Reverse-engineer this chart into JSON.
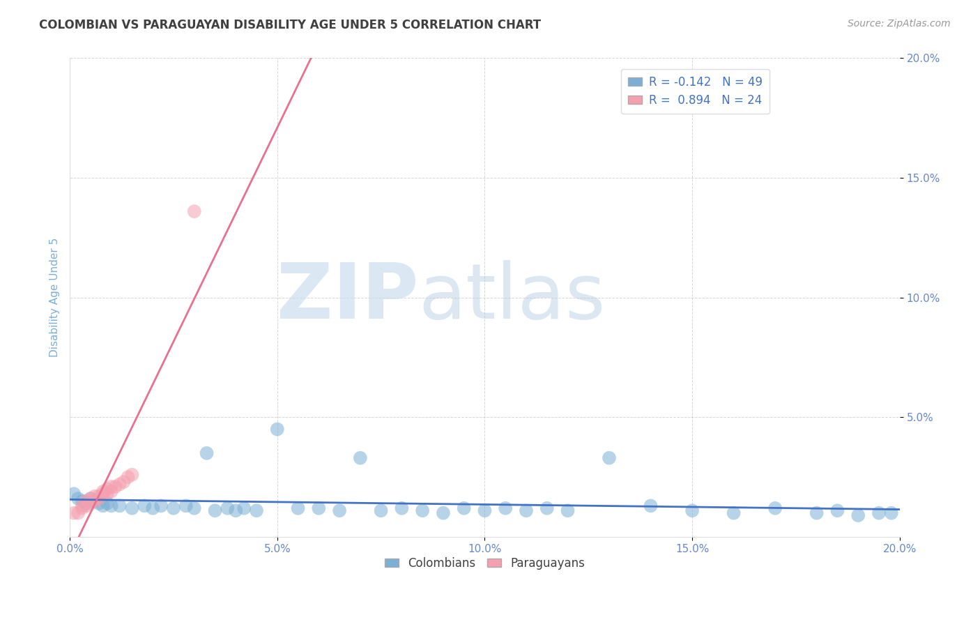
{
  "title": "COLOMBIAN VS PARAGUAYAN DISABILITY AGE UNDER 5 CORRELATION CHART",
  "source_text": "Source: ZipAtlas.com",
  "ylabel": "Disability Age Under 5",
  "xlim": [
    0.0,
    0.2
  ],
  "ylim": [
    0.0,
    0.2
  ],
  "xtick_labels": [
    "0.0%",
    "5.0%",
    "10.0%",
    "15.0%",
    "20.0%"
  ],
  "xtick_vals": [
    0.0,
    0.05,
    0.1,
    0.15,
    0.2
  ],
  "ytick_labels": [
    "20.0%",
    "15.0%",
    "10.0%",
    "5.0%"
  ],
  "ytick_vals": [
    0.2,
    0.15,
    0.1,
    0.05
  ],
  "colombians_x": [
    0.001,
    0.002,
    0.003,
    0.004,
    0.005,
    0.006,
    0.007,
    0.008,
    0.009,
    0.01,
    0.012,
    0.015,
    0.018,
    0.02,
    0.022,
    0.025,
    0.028,
    0.03,
    0.033,
    0.035,
    0.038,
    0.04,
    0.042,
    0.045,
    0.05,
    0.055,
    0.06,
    0.065,
    0.07,
    0.075,
    0.08,
    0.085,
    0.09,
    0.095,
    0.1,
    0.105,
    0.11,
    0.115,
    0.12,
    0.13,
    0.14,
    0.15,
    0.16,
    0.17,
    0.18,
    0.185,
    0.19,
    0.195,
    0.198
  ],
  "colombians_y": [
    0.018,
    0.016,
    0.015,
    0.014,
    0.016,
    0.015,
    0.014,
    0.013,
    0.014,
    0.013,
    0.013,
    0.012,
    0.013,
    0.012,
    0.013,
    0.012,
    0.013,
    0.012,
    0.035,
    0.011,
    0.012,
    0.011,
    0.012,
    0.011,
    0.045,
    0.012,
    0.012,
    0.011,
    0.033,
    0.011,
    0.012,
    0.011,
    0.01,
    0.012,
    0.011,
    0.012,
    0.011,
    0.012,
    0.011,
    0.033,
    0.013,
    0.011,
    0.01,
    0.012,
    0.01,
    0.011,
    0.009,
    0.01,
    0.01
  ],
  "paraguayans_x": [
    0.001,
    0.002,
    0.003,
    0.003,
    0.004,
    0.004,
    0.005,
    0.005,
    0.006,
    0.006,
    0.007,
    0.007,
    0.008,
    0.008,
    0.009,
    0.009,
    0.01,
    0.01,
    0.011,
    0.012,
    0.013,
    0.014,
    0.015,
    0.03
  ],
  "paraguayans_y": [
    0.01,
    0.01,
    0.012,
    0.013,
    0.013,
    0.015,
    0.014,
    0.016,
    0.015,
    0.017,
    0.016,
    0.017,
    0.018,
    0.019,
    0.018,
    0.02,
    0.019,
    0.021,
    0.021,
    0.022,
    0.023,
    0.025,
    0.026,
    0.136
  ],
  "colombian_color": "#7BAFD4",
  "paraguayan_color": "#F4A0B0",
  "colombian_line_color": "#4472C4",
  "paraguayan_line_color": "#E87090",
  "R_colombian": -0.142,
  "N_colombian": 49,
  "R_paraguayan": 0.894,
  "N_paraguayan": 24,
  "watermark_zip": "ZIP",
  "watermark_atlas": "atlas",
  "background_color": "#FFFFFF",
  "grid_color": "#BBBBBB",
  "title_color": "#404040",
  "axis_label_color": "#7BAFD4",
  "tick_color": "#6688CC",
  "source_color": "#999999"
}
